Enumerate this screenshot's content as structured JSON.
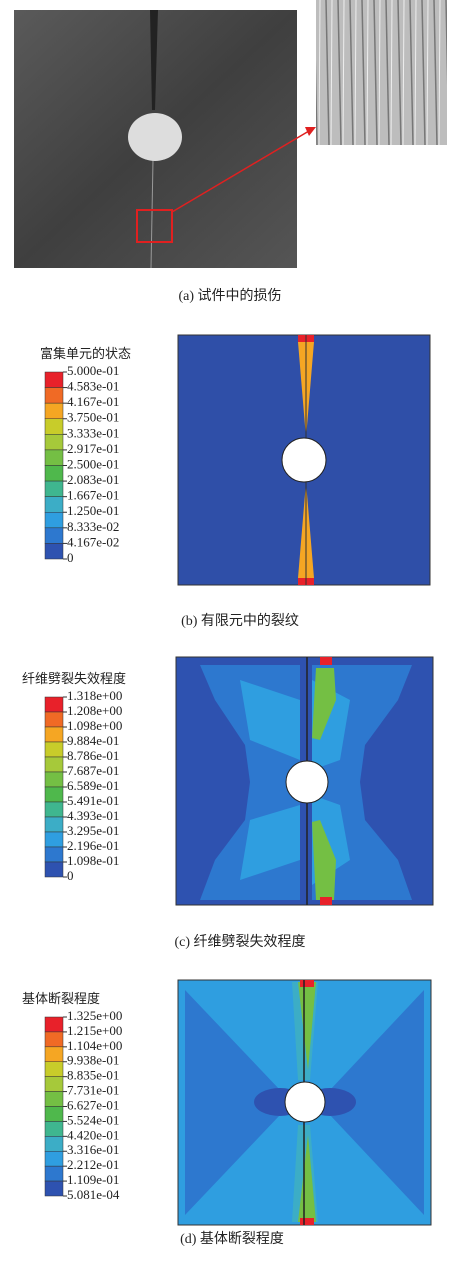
{
  "panels": [
    {
      "caption": "(a) 试件中的损伤"
    },
    {
      "legend_title": "富集单元的状态",
      "legend_labels": [
        "5.000e-01",
        "4.583e-01",
        "4.167e-01",
        "3.750e-01",
        "3.333e-01",
        "2.917e-01",
        "2.500e-01",
        "2.083e-01",
        "1.667e-01",
        "1.250e-01",
        "8.333e-02",
        "4.167e-02",
        "0"
      ],
      "caption": "(b) 有限元中的裂纹"
    },
    {
      "legend_title": "纤维劈裂失效程度",
      "legend_labels": [
        "1.318e+00",
        "1.208e+00",
        "1.098e+00",
        "9.884e-01",
        "8.786e-01",
        "7.687e-01",
        "6.589e-01",
        "5.491e-01",
        "4.393e-01",
        "3.295e-01",
        "2.196e-01",
        "1.098e-01",
        "0"
      ],
      "caption": "(c) 纤维劈裂失效程度"
    },
    {
      "legend_title": "基体断裂程度",
      "legend_labels": [
        "1.325e+00",
        "1.215e+00",
        "1.104e+00",
        "9.938e-01",
        "8.835e-01",
        "7.731e-01",
        "6.627e-01",
        "5.524e-01",
        "4.420e-01",
        "3.316e-01",
        "2.212e-01",
        "1.109e-01",
        "5.081e-04"
      ],
      "caption": "(d) 基体断裂程度"
    }
  ]
}
